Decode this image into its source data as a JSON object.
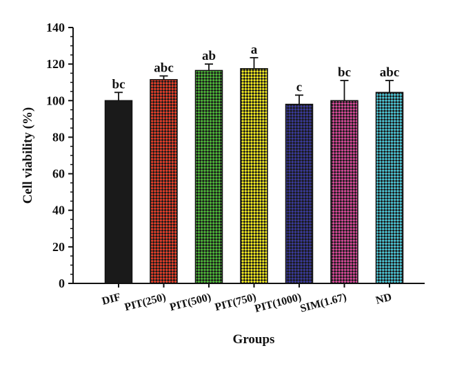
{
  "chart_data": {
    "type": "bar",
    "title": "",
    "xlabel": "Groups",
    "ylabel": "Cell viability (%)",
    "ylim": [
      0,
      140
    ],
    "yticks": [
      "0",
      "20",
      "40",
      "60",
      "80",
      "100",
      "120",
      "140"
    ],
    "categories": [
      "DIF",
      "PIT(250)",
      "PIT(500)",
      "PIT(750)",
      "PIT(1000)",
      "SIM(1.67)",
      "ND"
    ],
    "values": [
      100,
      111.5,
      116.5,
      117.5,
      98,
      100,
      104.5
    ],
    "errors": [
      4.5,
      2,
      3.5,
      6,
      5,
      11,
      6.5
    ],
    "significance_labels": [
      "bc",
      "abc",
      "ab",
      "a",
      "c",
      "bc",
      "abc"
    ],
    "bar_colors": [
      "#1a1a1a",
      "#e8402a",
      "#4fb83a",
      "#f2ea22",
      "#3a3a9a",
      "#d84a9a",
      "#4ec8d8"
    ],
    "grid": false,
    "legend": "none"
  }
}
